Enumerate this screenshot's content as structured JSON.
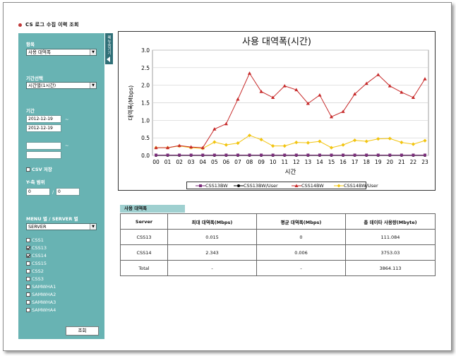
{
  "page_title": "CS 로그 수집 이력 조회",
  "sidebar": {
    "item_label": "항목",
    "item_select": "사용 대역폭",
    "period_select_label": "기간선택",
    "period_select": "시간별(1시간)",
    "date_label": "기간",
    "date_from": "2012-12-19",
    "date_to": "2012-12-19",
    "tilde": "~",
    "csv_label": "CSV 저장",
    "yaxis_label": "Y-축 범위",
    "yaxis_min": "0",
    "yaxis_sep": "/",
    "yaxis_max": "0",
    "group_label": "MENU 별 / SERVER 별",
    "group_select": "SERVER",
    "servers": [
      {
        "name": "CSS1",
        "checked": false
      },
      {
        "name": "CSS13",
        "checked": true
      },
      {
        "name": "CSS14",
        "checked": true
      },
      {
        "name": "CSS15",
        "checked": false
      },
      {
        "name": "CSS2",
        "checked": false
      },
      {
        "name": "CSS3",
        "checked": false
      },
      {
        "name": "SAMWHA1",
        "checked": false
      },
      {
        "name": "SAMWHA2",
        "checked": false
      },
      {
        "name": "SAMWHA3",
        "checked": false
      },
      {
        "name": "SAMWHA4",
        "checked": false
      }
    ],
    "search_button": "조회"
  },
  "side_tab": "메뉴숨기기",
  "chart_data": {
    "type": "line",
    "title": "사용 대역폭(시간)",
    "xlabel": "시간",
    "ylabel": "대역폭(Mbps)",
    "ylim": [
      0.0,
      3.0
    ],
    "yticks": [
      "0.0",
      "0.5",
      "1.0",
      "1.5",
      "2.0",
      "2.5",
      "3.0"
    ],
    "grid": "horizontal",
    "legend": "bottom",
    "categories": [
      "00",
      "01",
      "02",
      "03",
      "04",
      "05",
      "06",
      "07",
      "08",
      "09",
      "10",
      "11",
      "12",
      "13",
      "14",
      "15",
      "16",
      "17",
      "18",
      "19",
      "20",
      "21",
      "22",
      "23"
    ],
    "series": [
      {
        "name": "CSS13BW",
        "color": "#7a2c7a",
        "marker": "square",
        "values": [
          0.01,
          0.01,
          0.01,
          0.01,
          0.01,
          0.01,
          0.01,
          0.01,
          0.01,
          0.01,
          0.01,
          0.01,
          0.01,
          0.01,
          0.01,
          0.01,
          0.01,
          0.01,
          0.01,
          0.01,
          0.01,
          0.01,
          0.01,
          0.01
        ]
      },
      {
        "name": "CSS13BW/User",
        "color": "#000000",
        "marker": "circle",
        "values": [
          0,
          0,
          0,
          0,
          0,
          0,
          0,
          0,
          0,
          0,
          0,
          0,
          0,
          0,
          0,
          0,
          0,
          0,
          0,
          0,
          0,
          0,
          0,
          0
        ]
      },
      {
        "name": "CSS14BW",
        "color": "#c62828",
        "marker": "triangle",
        "values": [
          0.22,
          0.22,
          0.28,
          0.24,
          0.22,
          0.75,
          0.9,
          1.6,
          2.34,
          1.82,
          1.65,
          1.98,
          1.87,
          1.48,
          1.72,
          1.1,
          1.25,
          1.75,
          2.05,
          2.3,
          1.98,
          1.8,
          1.65,
          2.18
        ]
      },
      {
        "name": "CSS14BW/User",
        "color": "#f2c40f",
        "marker": "diamond",
        "values": [
          0.22,
          0.22,
          0.27,
          0.22,
          0.2,
          0.38,
          0.3,
          0.35,
          0.57,
          0.45,
          0.27,
          0.27,
          0.37,
          0.36,
          0.4,
          0.22,
          0.3,
          0.43,
          0.4,
          0.47,
          0.48,
          0.37,
          0.32,
          0.42
        ]
      }
    ]
  },
  "usage_section": {
    "title": "사용 대역폭",
    "headers": [
      "Server",
      "최대 대역폭(Mbps)",
      "평균 대역폭(Mbps)",
      "총 데이타 사용량(Mbyte)"
    ],
    "rows": [
      [
        "CSS13",
        "0.015",
        "0",
        "111.084"
      ],
      [
        "CSS14",
        "2.343",
        "0.006",
        "3753.03"
      ],
      [
        "Total",
        "-",
        "-",
        "3864.113"
      ]
    ]
  }
}
